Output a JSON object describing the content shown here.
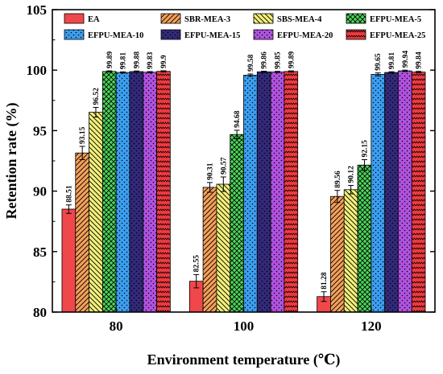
{
  "chart_data": {
    "type": "bar",
    "xlabel": "Environment temperature (℃)",
    "ylabel": "Retention rate (%)",
    "ylim": [
      80,
      105
    ],
    "yticks": [
      80,
      85,
      90,
      95,
      100,
      105
    ],
    "categories": [
      "80",
      "100",
      "120"
    ],
    "legend_position": "top",
    "series": [
      {
        "name": "EA",
        "values": [
          88.51,
          82.55,
          81.28
        ],
        "errors": [
          0.35,
          0.55,
          0.4
        ],
        "color": "#f0474b",
        "pattern": "solid"
      },
      {
        "name": "SBR-MEA-3",
        "values": [
          93.15,
          90.31,
          89.56
        ],
        "errors": [
          0.55,
          0.4,
          0.5
        ],
        "color": "#f5a05a",
        "pattern": "diag"
      },
      {
        "name": "SBS-MEA-4",
        "values": [
          96.52,
          90.57,
          90.12
        ],
        "errors": [
          0.4,
          0.6,
          0.35
        ],
        "color": "#f3f07a",
        "pattern": "diag-rev"
      },
      {
        "name": "EFPU-MEA-5",
        "values": [
          99.89,
          94.68,
          92.15
        ],
        "errors": [
          0.05,
          0.35,
          0.45
        ],
        "color": "#4cd65a",
        "pattern": "cross"
      },
      {
        "name": "EFPU-MEA-10",
        "values": [
          99.81,
          99.58,
          99.65
        ],
        "errors": [
          0.05,
          0.1,
          0.12
        ],
        "color": "#3c9ef0",
        "pattern": "dots"
      },
      {
        "name": "EFPU-MEA-15",
        "values": [
          99.88,
          99.86,
          99.81
        ],
        "errors": [
          0.05,
          0.05,
          0.06
        ],
        "color": "#33297a",
        "pattern": "dots"
      },
      {
        "name": "EFPU-MEA-20",
        "values": [
          99.83,
          99.85,
          99.94
        ],
        "errors": [
          0.05,
          0.05,
          0.06
        ],
        "color": "#b052e0",
        "pattern": "dots"
      },
      {
        "name": "EFPU-MEA-25",
        "values": [
          99.9,
          99.89,
          99.84
        ],
        "errors": [
          0.05,
          0.05,
          0.06
        ],
        "color": "#ee3b40",
        "pattern": "zigzag"
      }
    ],
    "value_labels": [
      [
        "88.51",
        "82.55",
        "81.28"
      ],
      [
        "93.15",
        "90.31",
        "89.56"
      ],
      [
        "96.52",
        "90.57",
        "90.12"
      ],
      [
        "99.89",
        "94.68",
        "92.15"
      ],
      [
        "99.81",
        "99.58",
        "99.65"
      ],
      [
        "99.88",
        "99.86",
        "99.81"
      ],
      [
        "99.83",
        "99.85",
        "99.94"
      ],
      [
        "99.9",
        "99.89",
        "99.84"
      ]
    ]
  }
}
